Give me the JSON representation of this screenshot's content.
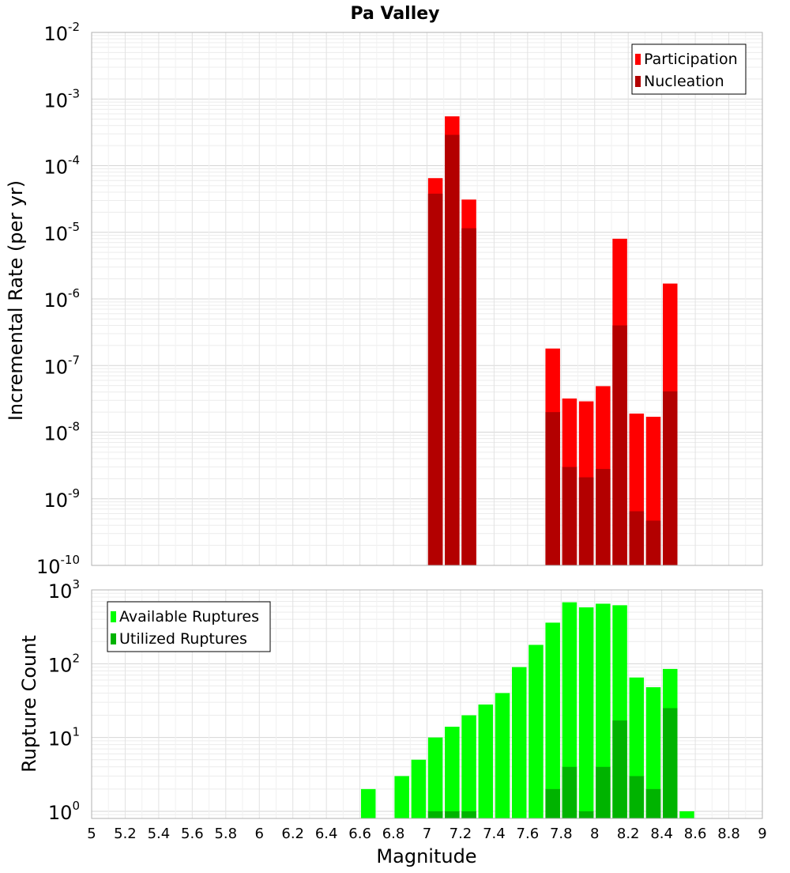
{
  "chart_data": [
    {
      "type": "bar",
      "title": "Pa Valley",
      "xlabel": "",
      "ylabel": "Incremental Rate (per yr)",
      "yscale": "log",
      "xlim": [
        5,
        9
      ],
      "ylim": [
        1e-10,
        0.01
      ],
      "grid": true,
      "legend_position": "top-right",
      "series": [
        {
          "name": "Participation",
          "color": "#ff0000",
          "x": [
            7.05,
            7.15,
            7.25,
            7.75,
            7.85,
            7.95,
            8.05,
            8.15,
            8.25,
            8.35,
            8.45
          ],
          "values": [
            6.5e-05,
            0.00055,
            3.1e-05,
            1.8e-07,
            3.2e-08,
            2.9e-08,
            4.9e-08,
            8e-06,
            1.9e-08,
            1.7e-08,
            1.7e-06
          ]
        },
        {
          "name": "Nucleation",
          "color": "#b30000",
          "x": [
            7.05,
            7.15,
            7.25,
            7.75,
            7.85,
            7.95,
            8.05,
            8.15,
            8.25,
            8.35,
            8.45
          ],
          "values": [
            3.8e-05,
            0.00029,
            1.15e-05,
            2e-08,
            3e-09,
            2.1e-09,
            2.8e-09,
            4e-07,
            6.5e-10,
            4.7e-10,
            4.1e-08
          ]
        }
      ],
      "y_ticks": [
        {
          "base": "10",
          "exp": "-2"
        },
        {
          "base": "10",
          "exp": "-3"
        },
        {
          "base": "10",
          "exp": "-4"
        },
        {
          "base": "10",
          "exp": "-5"
        },
        {
          "base": "10",
          "exp": "-6"
        },
        {
          "base": "10",
          "exp": "-7"
        },
        {
          "base": "10",
          "exp": "-8"
        },
        {
          "base": "10",
          "exp": "-9"
        },
        {
          "base": "10",
          "exp": "-10"
        }
      ]
    },
    {
      "type": "bar",
      "title": "",
      "xlabel": "Magnitude",
      "ylabel": "Rupture Count",
      "yscale": "log",
      "xlim": [
        5,
        9
      ],
      "ylim": [
        0.8,
        1000
      ],
      "grid": true,
      "legend_position": "top-left",
      "x_tick_labels": [
        "5",
        "5.2",
        "5.4",
        "5.6",
        "5.8",
        "6",
        "6.2",
        "6.4",
        "6.6",
        "6.8",
        "7",
        "7.2",
        "7.4",
        "7.6",
        "7.8",
        "8",
        "8.2",
        "8.4",
        "8.6",
        "8.8",
        "9"
      ],
      "series": [
        {
          "name": "Available Ruptures",
          "color": "#00ff00",
          "x": [
            6.65,
            6.85,
            6.95,
            7.05,
            7.15,
            7.25,
            7.35,
            7.45,
            7.55,
            7.65,
            7.75,
            7.85,
            7.95,
            8.05,
            8.15,
            8.25,
            8.35,
            8.45,
            8.55
          ],
          "values": [
            2,
            3,
            5,
            10,
            14,
            20,
            28,
            40,
            90,
            180,
            360,
            680,
            580,
            650,
            620,
            65,
            48,
            85,
            1
          ]
        },
        {
          "name": "Utilized Ruptures",
          "color": "#00b300",
          "x": [
            7.05,
            7.15,
            7.25,
            7.75,
            7.85,
            7.95,
            8.05,
            8.15,
            8.25,
            8.35,
            8.45
          ],
          "values": [
            1,
            1,
            1,
            2,
            4,
            1,
            4,
            17,
            3,
            2,
            25
          ]
        }
      ],
      "y_ticks": [
        {
          "base": "10",
          "exp": "3"
        },
        {
          "base": "10",
          "exp": "2"
        },
        {
          "base": "10",
          "exp": "1"
        },
        {
          "base": "10",
          "exp": "0"
        }
      ]
    }
  ]
}
